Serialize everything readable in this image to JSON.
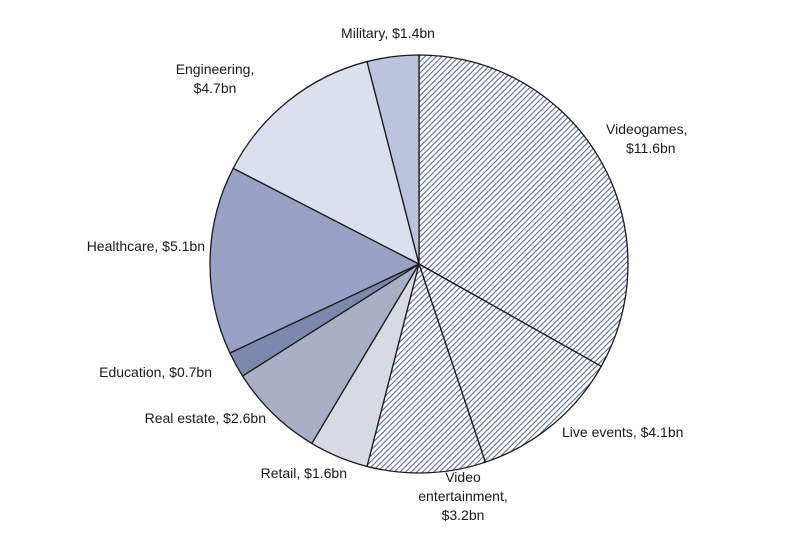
{
  "chart_data": {
    "type": "pie",
    "categories": [
      "Videogames",
      "Live events",
      "Video entertainment",
      "Retail",
      "Real estate",
      "Education",
      "Healthcare",
      "Engineering",
      "Military"
    ],
    "values": [
      11.6,
      4.1,
      3.2,
      1.6,
      2.6,
      0.7,
      5.1,
      4.7,
      1.4
    ],
    "unit": "$bn",
    "labels": [
      [
        "Videogames,",
        "$11.6bn"
      ],
      [
        "Live events, $4.1bn"
      ],
      [
        "Video",
        "entertainment,",
        "$3.2bn"
      ],
      [
        "Retail, $1.6bn"
      ],
      [
        "Real estate, $2.6bn"
      ],
      [
        "Education, $0.7bn"
      ],
      [
        "Healthcare, $5.1bn"
      ],
      [
        "Engineering,",
        "$4.7bn"
      ],
      [
        "Military, $1.4bn"
      ]
    ],
    "fills": [
      "hatch-blue",
      "hatch-blue",
      "hatch-blue",
      "#d8dae2",
      "#a9afc4",
      "#7d88ad",
      "#97a2c4",
      "#dcdfed",
      "#bcc4dd"
    ],
    "stroke": "#1a1a1a"
  }
}
